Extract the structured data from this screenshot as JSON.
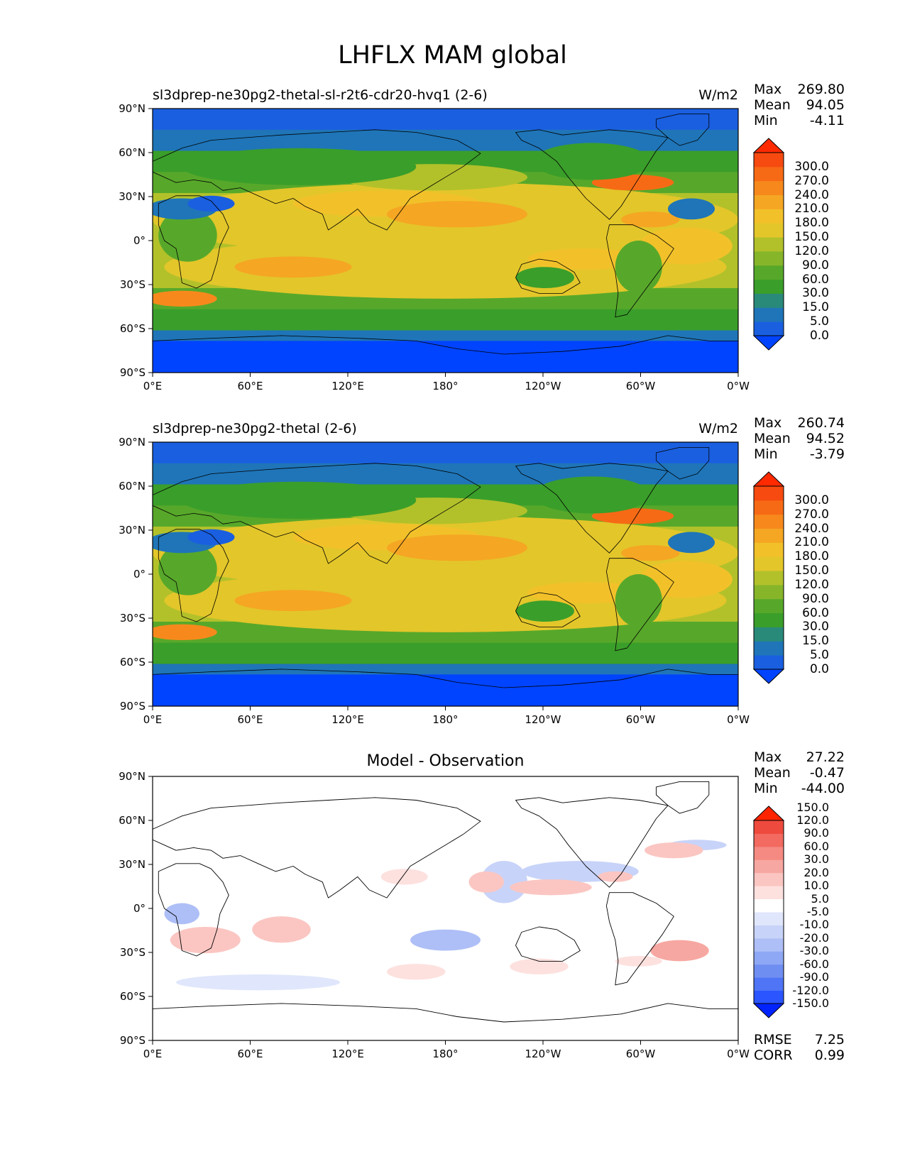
{
  "title": "LHFLX MAM global",
  "colors": {
    "land_outline": "#000000",
    "abs_levels": [
      "#0044ff",
      "#1a5fe0",
      "#1f75b8",
      "#2a8a7a",
      "#3a9e2a",
      "#57a82a",
      "#86b52a",
      "#b2c12a",
      "#e3c62a",
      "#f2c12a",
      "#f5a623",
      "#f7891c",
      "#f76a15",
      "#f64a10",
      "#ff2a00"
    ],
    "diff_levels": [
      "#0022ff",
      "#2a55ff",
      "#4f74f5",
      "#6f8ef2",
      "#8ea8f5",
      "#aebff7",
      "#c8d3f9",
      "#e0e7fc",
      "#ffffff",
      "#fde1df",
      "#fbc6c2",
      "#f7a7a1",
      "#f58a82",
      "#f26a60",
      "#ef4a3e",
      "#ff2400"
    ]
  },
  "panels": [
    {
      "id": "test",
      "title": "sl3dprep-ne30pg2-thetal-sl-r2t6-cdr20-hvq1 (2-6)",
      "units": "W/m2",
      "stats": {
        "max_label": "Max",
        "max": "269.80",
        "mean_label": "Mean",
        "mean": "94.05",
        "min_label": "Min",
        "min": "-4.11"
      },
      "colorbar": {
        "extend": "both",
        "levels": [
          "0.0",
          "5.0",
          "15.0",
          "30.0",
          "60.0",
          "90.0",
          "120.0",
          "150.0",
          "180.0",
          "210.0",
          "240.0",
          "270.0",
          "300.0"
        ]
      }
    },
    {
      "id": "ref",
      "title": "sl3dprep-ne30pg2-thetal (2-6)",
      "units": "W/m2",
      "stats": {
        "max_label": "Max",
        "max": "260.74",
        "mean_label": "Mean",
        "mean": "94.52",
        "min_label": "Min",
        "min": "-3.79"
      },
      "colorbar": {
        "extend": "both",
        "levels": [
          "0.0",
          "5.0",
          "15.0",
          "30.0",
          "60.0",
          "90.0",
          "120.0",
          "150.0",
          "180.0",
          "210.0",
          "240.0",
          "270.0",
          "300.0"
        ]
      }
    },
    {
      "id": "diff",
      "title": "Model - Observation",
      "units": "",
      "stats": {
        "max_label": "Max",
        "max": "27.22",
        "mean_label": "Mean",
        "mean": "-0.47",
        "min_label": "Min",
        "min": "-44.00"
      },
      "colorbar": {
        "extend": "both",
        "levels": [
          "-150.0",
          "-120.0",
          "-90.0",
          "-60.0",
          "-30.0",
          "-20.0",
          "-10.0",
          "-5.0",
          "5.0",
          "10.0",
          "20.0",
          "30.0",
          "60.0",
          "90.0",
          "120.0",
          "150.0"
        ]
      },
      "metrics": {
        "rmse_label": "RMSE",
        "rmse": "7.25",
        "corr_label": "CORR",
        "corr": "0.99"
      }
    }
  ],
  "axes": {
    "lat_ticks": [
      "90°N",
      "60°N",
      "30°N",
      "0°",
      "30°S",
      "60°S",
      "90°S"
    ],
    "lon_ticks": [
      "0°E",
      "60°E",
      "120°E",
      "180°",
      "120°W",
      "60°W",
      "0°W"
    ]
  }
}
